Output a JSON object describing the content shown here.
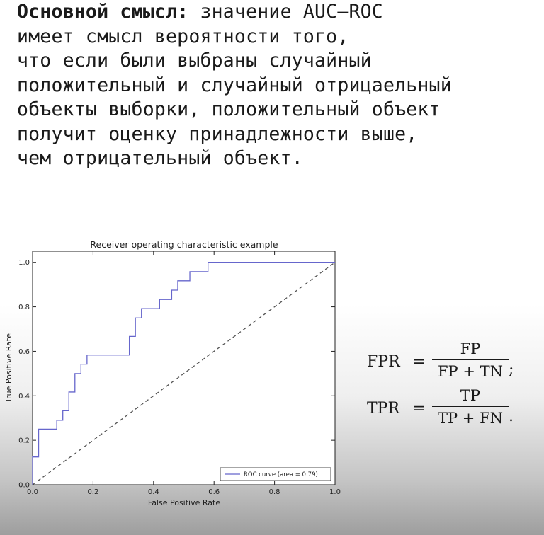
{
  "text": {
    "bold_lead": "Основной смысл:",
    "lines": [
      " значение AUC–ROC",
      "имеет смысл вероятности того,",
      "что если были выбраны случайный",
      "положительный и случайный отрицаельный",
      "объекты выборки, положительный объект",
      "получит оценку принадлежности выше,",
      "чем отрицательный объект."
    ]
  },
  "formulas": {
    "fpr": {
      "lhs": "FPR",
      "eq": "=",
      "num": "FP",
      "den": "FP + TN",
      "punct": ";"
    },
    "tpr": {
      "lhs": "TPR",
      "eq": "=",
      "num": "TP",
      "den": "TP + FN",
      "punct": "."
    }
  },
  "chart_data": {
    "type": "line",
    "title": "Receiver operating characteristic example",
    "xlabel": "False Positive Rate",
    "ylabel": "True Positive Rate",
    "xlim": [
      0.0,
      1.0
    ],
    "ylim": [
      0.0,
      1.05
    ],
    "xticks": [
      "0.0",
      "0.2",
      "0.4",
      "0.6",
      "0.8",
      "1.0"
    ],
    "yticks": [
      "0.0",
      "0.2",
      "0.4",
      "0.6",
      "0.8",
      "1.0"
    ],
    "grid": false,
    "legend_position": "lower-right",
    "series": [
      {
        "name": "ROC curve (area = 0.79)",
        "style": "solid",
        "color": "#6666cc",
        "points": [
          [
            0.0,
            0.0
          ],
          [
            0.0,
            0.125
          ],
          [
            0.02,
            0.125
          ],
          [
            0.02,
            0.25
          ],
          [
            0.08,
            0.25
          ],
          [
            0.08,
            0.29
          ],
          [
            0.1,
            0.29
          ],
          [
            0.1,
            0.333
          ],
          [
            0.12,
            0.333
          ],
          [
            0.12,
            0.417
          ],
          [
            0.14,
            0.417
          ],
          [
            0.14,
            0.5
          ],
          [
            0.16,
            0.5
          ],
          [
            0.16,
            0.542
          ],
          [
            0.18,
            0.542
          ],
          [
            0.18,
            0.583
          ],
          [
            0.32,
            0.583
          ],
          [
            0.32,
            0.667
          ],
          [
            0.34,
            0.667
          ],
          [
            0.34,
            0.75
          ],
          [
            0.36,
            0.75
          ],
          [
            0.36,
            0.792
          ],
          [
            0.42,
            0.792
          ],
          [
            0.42,
            0.833
          ],
          [
            0.46,
            0.833
          ],
          [
            0.46,
            0.875
          ],
          [
            0.48,
            0.875
          ],
          [
            0.48,
            0.917
          ],
          [
            0.52,
            0.917
          ],
          [
            0.52,
            0.958
          ],
          [
            0.58,
            0.958
          ],
          [
            0.58,
            1.0
          ],
          [
            1.0,
            1.0
          ]
        ]
      },
      {
        "name": "",
        "style": "dashed",
        "color": "#555555",
        "points": [
          [
            0.0,
            0.0
          ],
          [
            1.0,
            1.0
          ]
        ]
      }
    ]
  }
}
